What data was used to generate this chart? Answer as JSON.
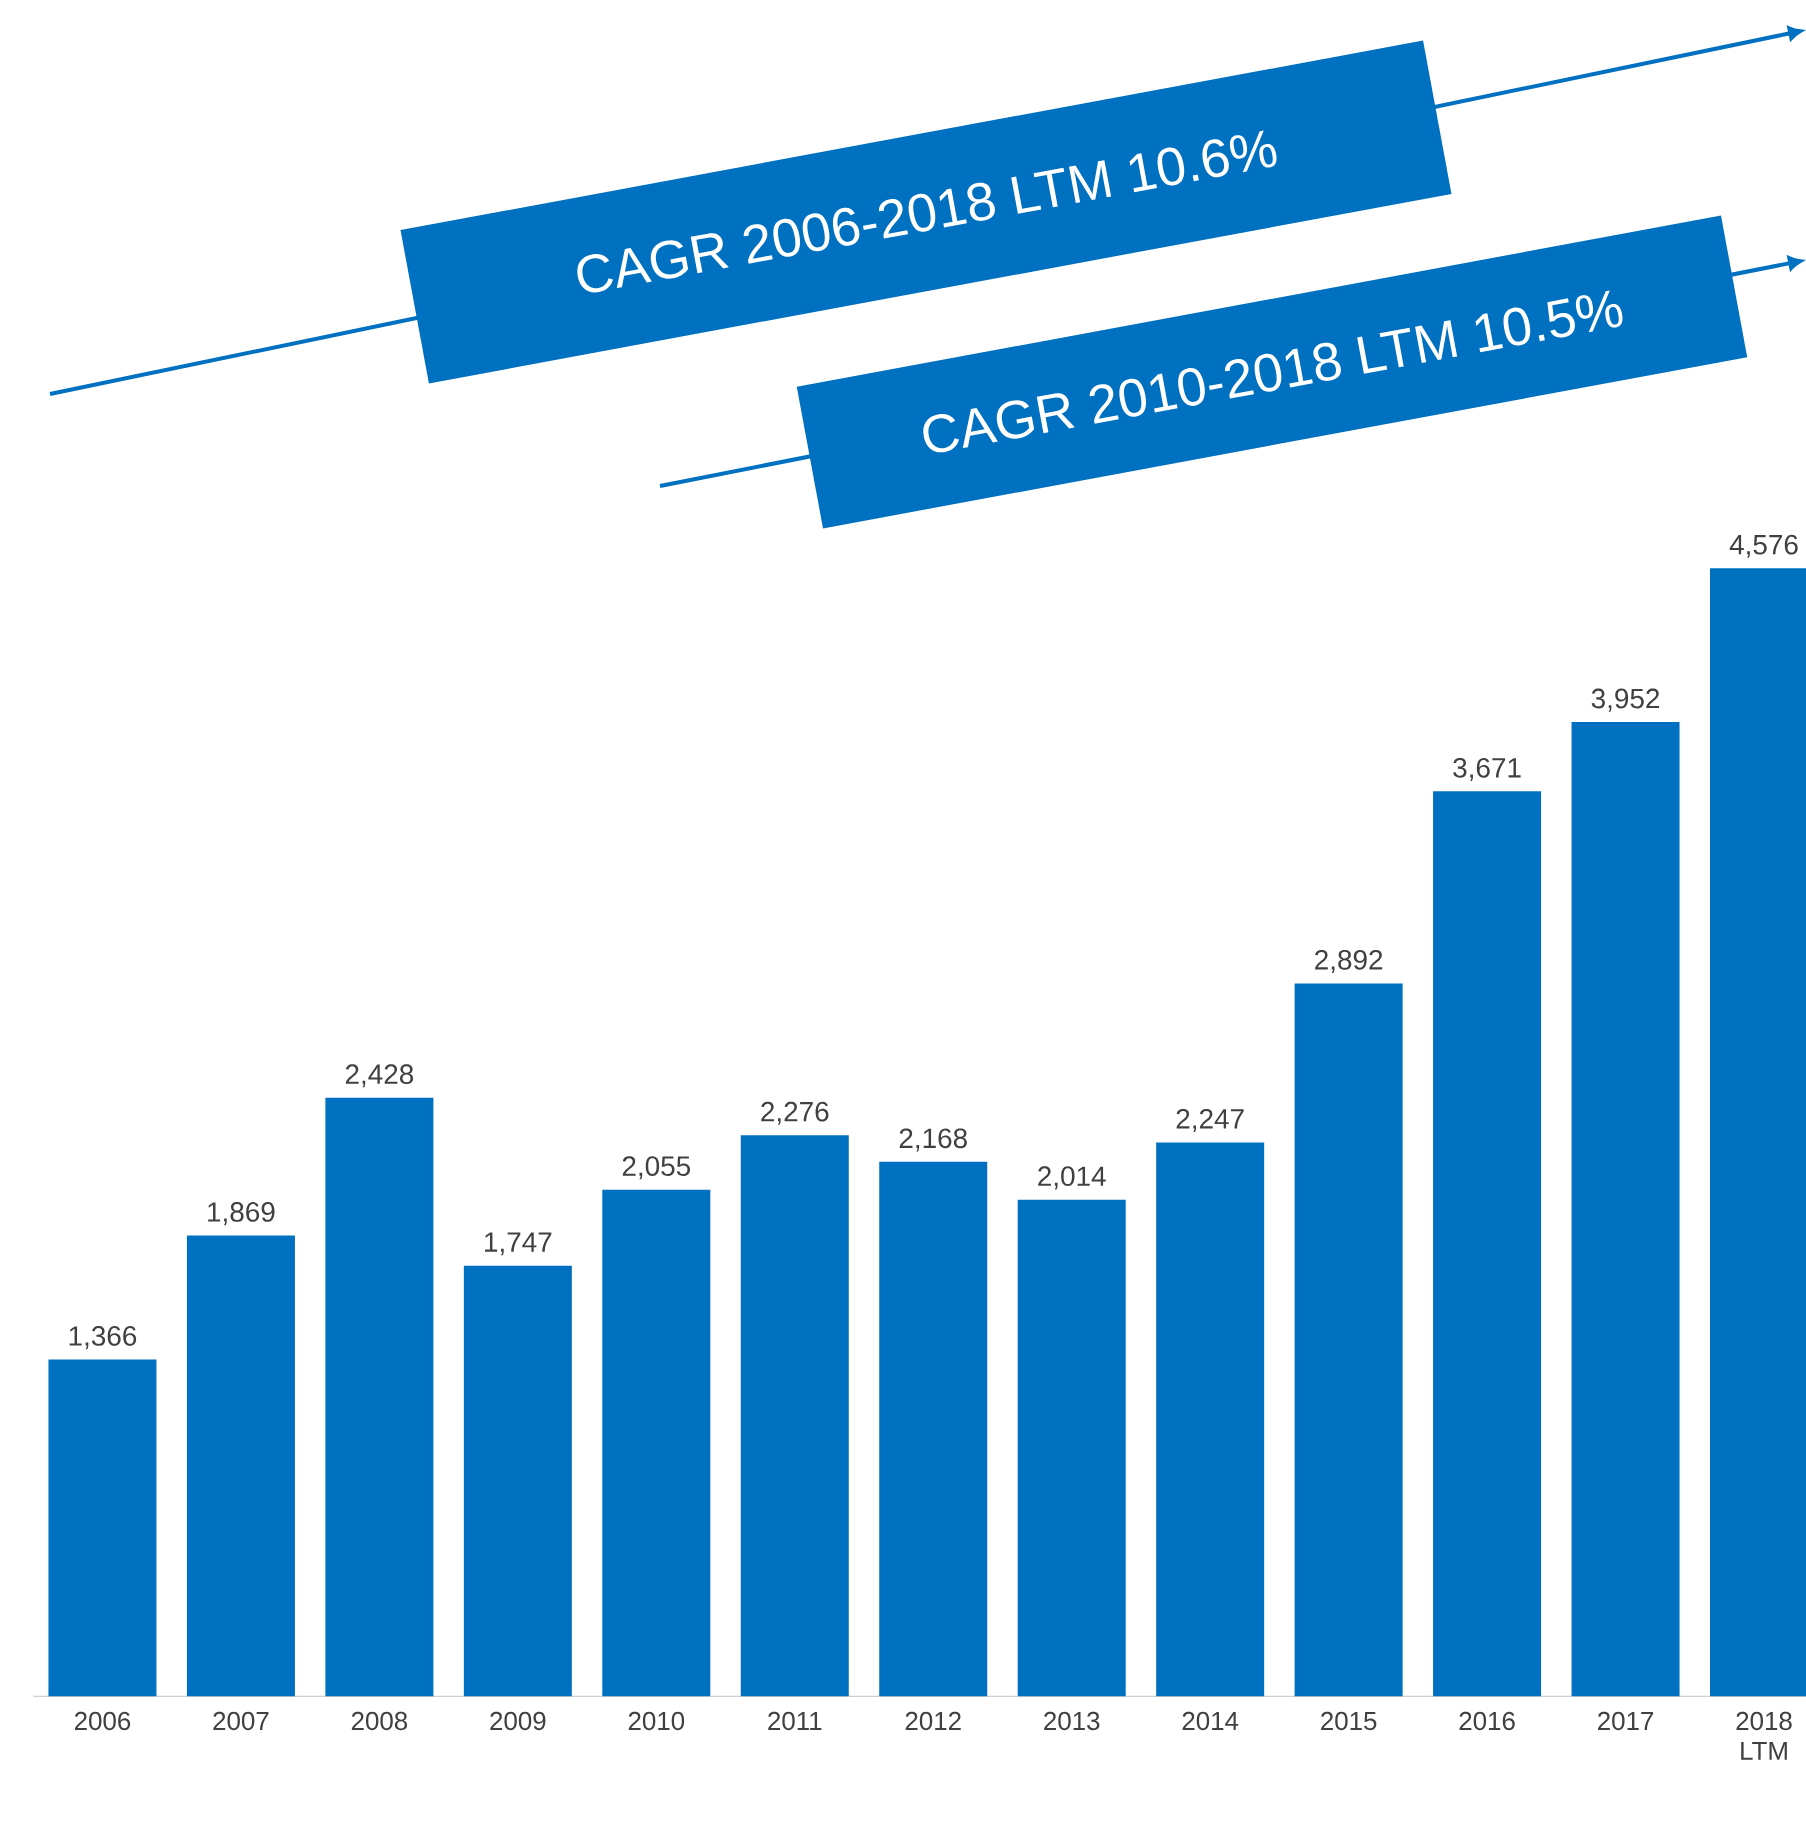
{
  "chart_data": {
    "type": "bar",
    "categories": [
      "2006",
      "2007",
      "2008",
      "2009",
      "2010",
      "2011",
      "2012",
      "2013",
      "2014",
      "2015",
      "2016",
      "2017",
      "2018 LTM"
    ],
    "values": [
      1366,
      1869,
      2428,
      1747,
      2055,
      2276,
      2168,
      2014,
      2247,
      2892,
      3671,
      3952,
      4576
    ],
    "color": "#0070c0",
    "value_labels": [
      "1,366",
      "1,869",
      "2,428",
      "1,747",
      "2,055",
      "2,276",
      "2,168",
      "2,014",
      "2,247",
      "2,892",
      "3,671",
      "3,952",
      "4,576"
    ],
    "annotations": [
      "CAGR 2006-2018 LTM 10.6%",
      "CAGR 2010-2018 LTM 10.5%"
    ]
  }
}
